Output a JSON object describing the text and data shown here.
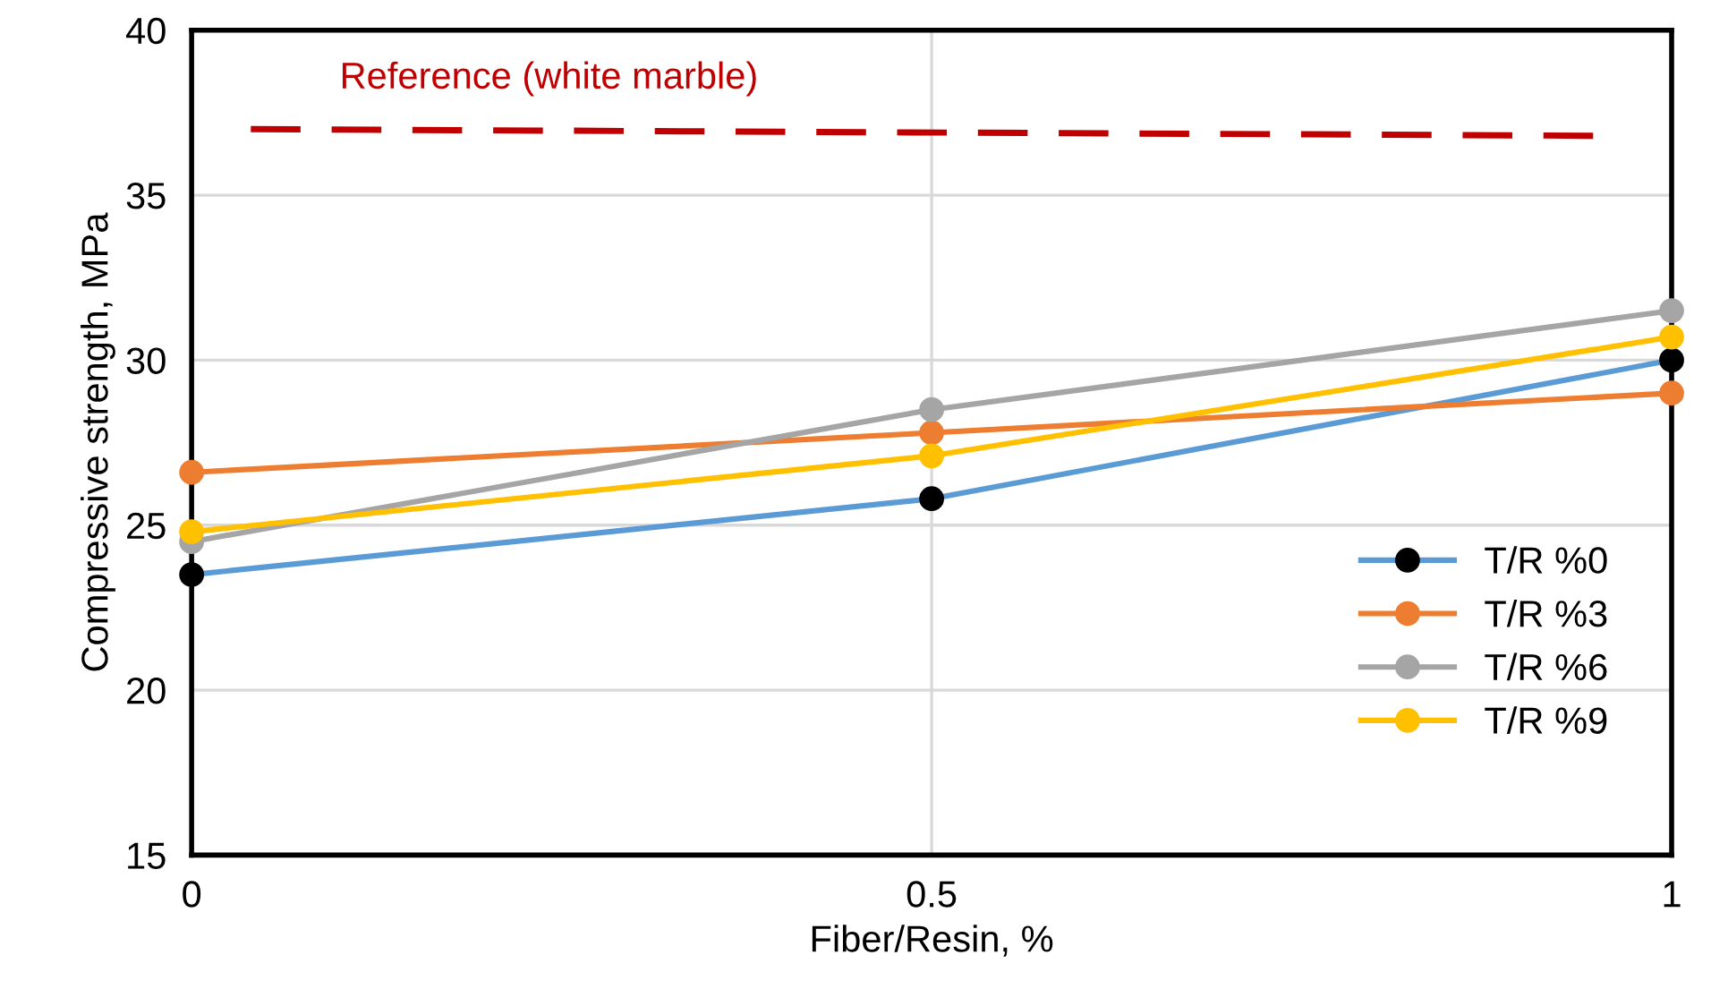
{
  "chart_data": {
    "type": "line",
    "xlabel": "Fiber/Resin, %",
    "ylabel": "Compressive strength, MPa",
    "x": [
      0,
      0.5,
      1
    ],
    "series": [
      {
        "name": "T/R %0",
        "color": "#5b9bd5",
        "colors": [
          "#000000",
          "#000000",
          "#000000"
        ],
        "values": [
          23.5,
          25.8,
          30.0
        ]
      },
      {
        "name": "T/R %3",
        "color": "#ed7d31",
        "values": [
          26.6,
          27.8,
          29.0
        ]
      },
      {
        "name": "T/R %6",
        "color": "#a5a5a5",
        "values": [
          24.5,
          28.5,
          31.5
        ]
      },
      {
        "name": "T/R %9",
        "color": "#ffc000",
        "values": [
          24.8,
          27.1,
          30.7
        ]
      },
      {
        "name": "Reference (white marble)",
        "type": "line",
        "x": [
          0.04,
          0.95
        ],
        "values": [
          37.0,
          36.8
        ],
        "color": "#c00000",
        "line_style": "dashed",
        "marker": "none"
      }
    ],
    "xlim": [
      0,
      1
    ],
    "xticks": [
      0,
      0.5,
      1
    ],
    "ylim": [
      15,
      40
    ],
    "yticks": [
      15,
      20,
      25,
      30,
      35,
      40
    ],
    "grid": true,
    "legend": "bottom right",
    "marker": "circle",
    "line_style": "solid"
  }
}
